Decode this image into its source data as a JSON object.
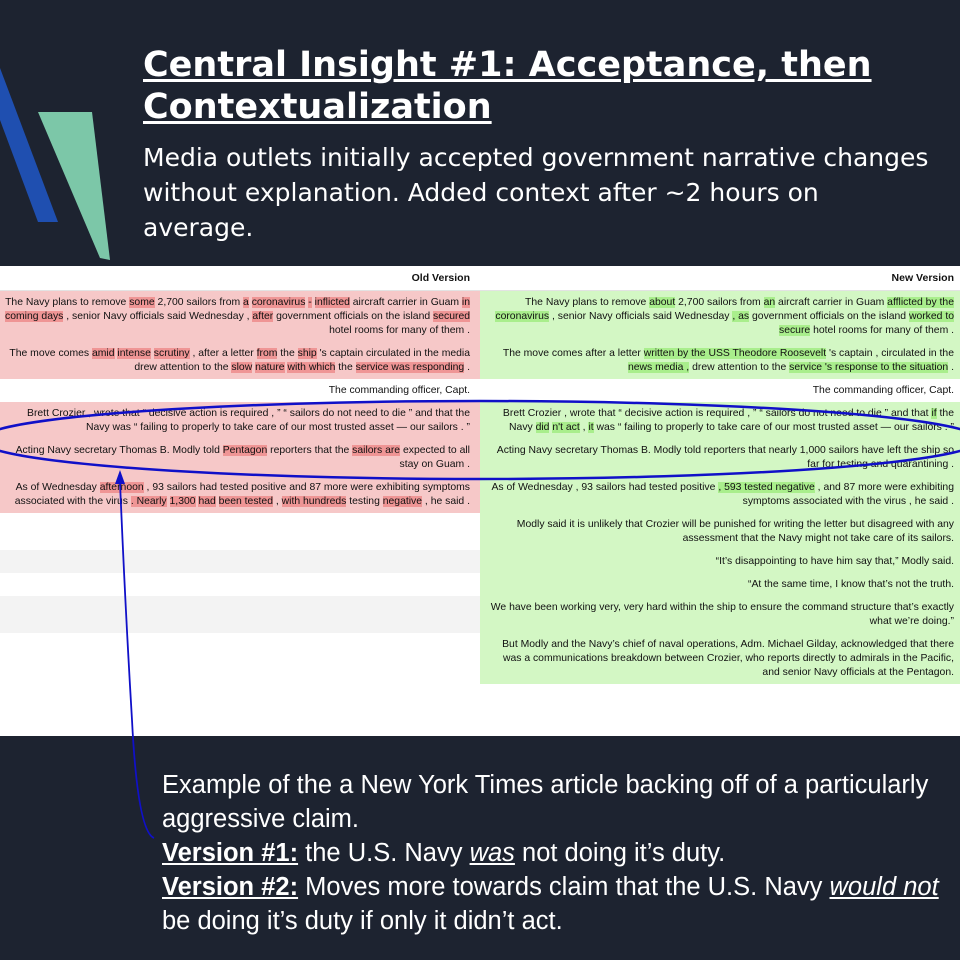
{
  "slide": {
    "title": "Central Insight #1: Acceptance, then Contextualization",
    "subtitle": "Media outlets initially accepted government narrative changes without explanation. Added context after ~2 hours on average."
  },
  "diff": {
    "old_header": "Old Version",
    "new_header": "New Version",
    "rows": [
      {
        "old": [
          [
            "The Navy plans to remove ",
            0
          ],
          [
            "some",
            1
          ],
          [
            " 2,700 sailors from ",
            0
          ],
          [
            "a",
            1
          ],
          [
            " ",
            0
          ],
          [
            "coronavirus",
            1
          ],
          [
            " ",
            0
          ],
          [
            "-",
            1
          ],
          [
            " ",
            0
          ],
          [
            "inflicted",
            1
          ],
          [
            " aircraft carrier in Guam ",
            0
          ],
          [
            "in",
            1
          ],
          [
            " ",
            0
          ],
          [
            "coming days",
            1
          ],
          [
            " , senior Navy officials said Wednesday , ",
            0
          ],
          [
            "after",
            1
          ],
          [
            " government officials on the island ",
            0
          ],
          [
            "secured",
            1
          ],
          [
            " hotel rooms for many of them .",
            0
          ]
        ],
        "new": [
          [
            "The Navy plans to remove ",
            0
          ],
          [
            "about",
            1
          ],
          [
            " 2,700 sailors from ",
            0
          ],
          [
            "an",
            1
          ],
          [
            " aircraft carrier in Guam ",
            0
          ],
          [
            "afflicted by the coronavirus",
            1
          ],
          [
            " , senior Navy officials said Wednesday ",
            0
          ],
          [
            ", as",
            1
          ],
          [
            " government officials on the island ",
            0
          ],
          [
            "worked to secure",
            1
          ],
          [
            " hotel rooms for many of them .",
            0
          ]
        ]
      },
      {
        "old": [
          [
            "The move comes ",
            0
          ],
          [
            "amid",
            1
          ],
          [
            " ",
            0
          ],
          [
            "intense",
            1
          ],
          [
            " ",
            0
          ],
          [
            "scrutiny",
            1
          ],
          [
            " , after a letter ",
            0
          ],
          [
            "from",
            1
          ],
          [
            " the ",
            0
          ],
          [
            "ship",
            1
          ],
          [
            " 's captain circulated in the media drew attention to the ",
            0
          ],
          [
            "slow",
            1
          ],
          [
            " ",
            0
          ],
          [
            "nature",
            1
          ],
          [
            " ",
            0
          ],
          [
            "with which",
            1
          ],
          [
            " the ",
            0
          ],
          [
            "service was responding",
            1
          ],
          [
            " .",
            0
          ]
        ],
        "new": [
          [
            "The move comes after a letter ",
            0
          ],
          [
            "written by the USS Theodore Roosevelt",
            1
          ],
          [
            " 's captain , circulated in the ",
            0
          ],
          [
            "news media ,",
            1
          ],
          [
            " drew attention to the ",
            0
          ],
          [
            "service 's response to the situation",
            1
          ],
          [
            " .",
            0
          ]
        ]
      },
      {
        "style": "plain",
        "old": [
          [
            "The commanding officer, Capt.",
            0
          ]
        ],
        "new": [
          [
            "The commanding officer, Capt.",
            0
          ]
        ]
      },
      {
        "old": [
          [
            "Brett Crozier , wrote that “ decisive action is required , ” “ sailors do not need to die ” and that the Navy was “ failing to properly to take care of our most trusted asset — our sailors . ”",
            0
          ]
        ],
        "new": [
          [
            "Brett Crozier , wrote that “ decisive action is required , ” “ sailors do not need to die ” and that ",
            0
          ],
          [
            "if",
            1
          ],
          [
            " the Navy ",
            0
          ],
          [
            "did",
            1
          ],
          [
            " ",
            0
          ],
          [
            "n't act",
            1
          ],
          [
            " , ",
            0
          ],
          [
            "it",
            1
          ],
          [
            " was “ failing to properly to take care of our most trusted asset — our sailors . ”",
            0
          ]
        ]
      },
      {
        "old": [
          [
            "Acting Navy secretary Thomas B. Modly told ",
            0
          ],
          [
            "Pentagon",
            1
          ],
          [
            " reporters that the ",
            0
          ],
          [
            "sailors are",
            1
          ],
          [
            " expected to all stay on Guam .",
            0
          ]
        ],
        "new": [
          [
            "Acting Navy secretary Thomas B. Modly told reporters that nearly 1,000 sailors have left the ship so far for testing and quarantining .",
            0
          ]
        ]
      },
      {
        "old": [
          [
            "As of Wednesday ",
            0
          ],
          [
            "afternoon",
            1
          ],
          [
            " , 93 sailors had tested positive and 87 more were exhibiting symptoms associated with the virus ",
            0
          ],
          [
            ". Nearly",
            1
          ],
          [
            " ",
            0
          ],
          [
            "1,300",
            1
          ],
          [
            " ",
            0
          ],
          [
            "had",
            1
          ],
          [
            " ",
            0
          ],
          [
            "been tested",
            1
          ],
          [
            " , ",
            0
          ],
          [
            "with hundreds",
            1
          ],
          [
            " testing ",
            0
          ],
          [
            "negative",
            1
          ],
          [
            " , he said .",
            0
          ]
        ],
        "new": [
          [
            "As of Wednesday , 93 sailors had tested positive ",
            0
          ],
          [
            ", 593 tested negative",
            1
          ],
          [
            " , and 87 more were exhibiting symptoms associated with the virus , he said .",
            0
          ]
        ]
      },
      {
        "style": "blank",
        "old": [],
        "new": [
          [
            "Modly said it is unlikely that Crozier will be punished for writing the letter but disagreed with any assessment that the Navy might not take care of its sailors.",
            0
          ]
        ]
      },
      {
        "style": "zebra",
        "old": [],
        "new": [
          [
            "“It’s disappointing to have him say that,” Modly said.",
            0
          ]
        ]
      },
      {
        "style": "blank",
        "old": [],
        "new": [
          [
            "“At the same time, I know that’s not the truth.",
            0
          ]
        ]
      },
      {
        "style": "zebra",
        "old": [],
        "new": [
          [
            "We have been working very, very hard within the ship to ensure the command structure that’s exactly what we’re doing.”",
            0
          ]
        ]
      },
      {
        "style": "blank",
        "old": [],
        "new": [
          [
            "But Modly and the Navy’s chief of naval operations, Adm. Michael Gilday, acknowledged that there was a communications breakdown between Crozier, who reports directly to admirals in the Pacific, and senior Navy officials at the Pentagon.",
            0
          ]
        ]
      }
    ]
  },
  "caption": {
    "line1": "Example of the a New York Times article backing off of a particularly aggressive claim.",
    "v1_label": "Version #1:",
    "v1_pre": " the U.S. Navy ",
    "v1_em": "was",
    "v1_post": " not doing it’s duty.",
    "v2_label": "Version #2:",
    "v2_pre": " Moves more towards claim that the U.S. Navy ",
    "v2_em": "would not",
    "v2_post": " be doing it’s duty if only it didn’t act."
  },
  "colors": {
    "background": "#1d2330",
    "logo_blue": "#1f4fb0",
    "logo_green": "#7cc7a8",
    "deleted_row": "#f6c8c8",
    "deleted_word": "#ef9595",
    "inserted_row": "#d3f7c4",
    "inserted_word": "#a9ee8c",
    "annotation_blue": "#1010c8"
  }
}
